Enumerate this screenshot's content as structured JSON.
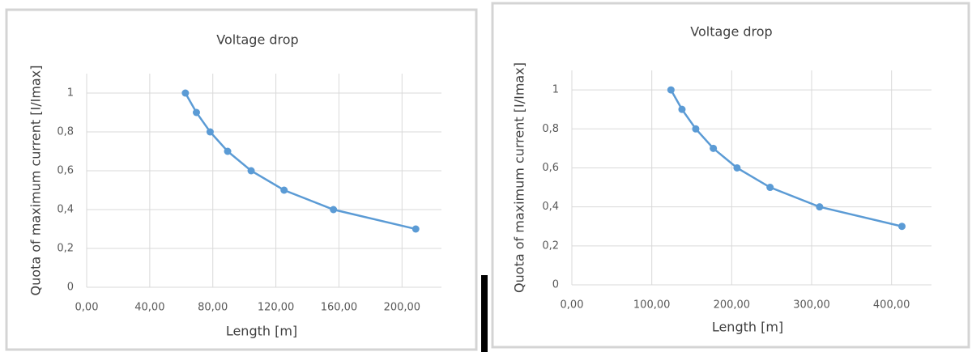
{
  "chart_data": [
    {
      "type": "line",
      "title": "Voltage drop",
      "x_label": "Length [m]",
      "y_label": "Quota of maximum current [I/Imax]",
      "x": [
        62.6,
        69.6,
        78.3,
        89.4,
        104.3,
        125.2,
        156.5,
        208.7
      ],
      "values": [
        1,
        0.9,
        0.8,
        0.7,
        0.6,
        0.5,
        0.4,
        0.3
      ],
      "color": "#5b9bd5",
      "xlim": [
        0,
        225
      ],
      "ylim": [
        0,
        1.1
      ],
      "xticks": [
        {
          "value": 0,
          "label": "0,00"
        },
        {
          "value": 40,
          "label": "40,00"
        },
        {
          "value": 80,
          "label": "80,00"
        },
        {
          "value": 120,
          "label": "120,00"
        },
        {
          "value": 160,
          "label": "160,00"
        },
        {
          "value": 200,
          "label": "200,00"
        }
      ],
      "yticks": [
        0,
        {
          "value": 0.2,
          "label": "0,2"
        },
        {
          "value": 0.4,
          "label": "0,4"
        },
        {
          "value": 0.6,
          "label": "0,6"
        },
        {
          "value": 0.8,
          "label": "0,8"
        },
        1
      ],
      "grid": true
    },
    {
      "type": "line",
      "title": "Voltage drop",
      "x_label": "Length [m]",
      "y_label": "Quota of maximum current [I/Imax]",
      "x": [
        124,
        137.8,
        155,
        177,
        206.7,
        248,
        310,
        413
      ],
      "values": [
        1,
        0.9,
        0.8,
        0.7,
        0.6,
        0.5,
        0.4,
        0.3
      ],
      "color": "#5b9bd5",
      "xlim": [
        0,
        450
      ],
      "ylim": [
        0,
        1.1
      ],
      "xticks": [
        {
          "value": 0,
          "label": "0,00"
        },
        {
          "value": 100,
          "label": "100,00"
        },
        {
          "value": 200,
          "label": "200,00"
        },
        {
          "value": 300,
          "label": "300,00"
        },
        {
          "value": 400,
          "label": "400,00"
        }
      ],
      "yticks": [
        0,
        {
          "value": 0.2,
          "label": "0,2"
        },
        {
          "value": 0.4,
          "label": "0,4"
        },
        {
          "value": 0.6,
          "label": "0,6"
        },
        {
          "value": 0.8,
          "label": "0,8"
        },
        1
      ],
      "grid": true
    }
  ]
}
